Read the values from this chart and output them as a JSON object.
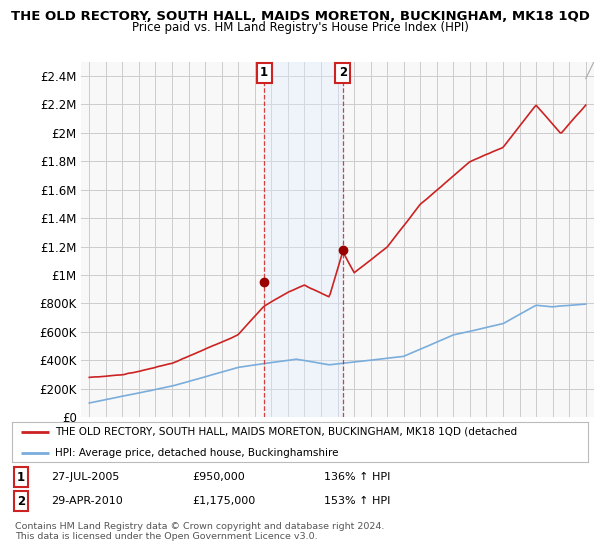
{
  "title": "THE OLD RECTORY, SOUTH HALL, MAIDS MORETON, BUCKINGHAM, MK18 1QD",
  "subtitle": "Price paid vs. HM Land Registry's House Price Index (HPI)",
  "ylabel_ticks": [
    "£0",
    "£200K",
    "£400K",
    "£600K",
    "£800K",
    "£1M",
    "£1.2M",
    "£1.4M",
    "£1.6M",
    "£1.8M",
    "£2M",
    "£2.2M",
    "£2.4M"
  ],
  "ytick_values": [
    0,
    200000,
    400000,
    600000,
    800000,
    1000000,
    1200000,
    1400000,
    1600000,
    1800000,
    2000000,
    2200000,
    2400000
  ],
  "ylim": [
    0,
    2500000
  ],
  "hpi_color": "#7aaddc",
  "property_color": "#cc2222",
  "marker1_x": 2005.57,
  "marker1_price": 950000,
  "marker2_x": 2010.32,
  "marker2_price": 1175000,
  "shade_color": "#ddeeff",
  "legend_line1": "THE OLD RECTORY, SOUTH HALL, MAIDS MORETON, BUCKINGHAM, MK18 1QD (detached",
  "legend_line2": "HPI: Average price, detached house, Buckinghamshire",
  "footer": "Contains HM Land Registry data © Crown copyright and database right 2024.\nThis data is licensed under the Open Government Licence v3.0.",
  "table_row1": [
    "1",
    "27-JUL-2005",
    "£950,000",
    "136% ↑ HPI"
  ],
  "table_row2": [
    "2",
    "29-APR-2010",
    "£1,175,000",
    "153% ↑ HPI"
  ],
  "background_color": "#ffffff",
  "plot_bg_color": "#f8f8f8"
}
